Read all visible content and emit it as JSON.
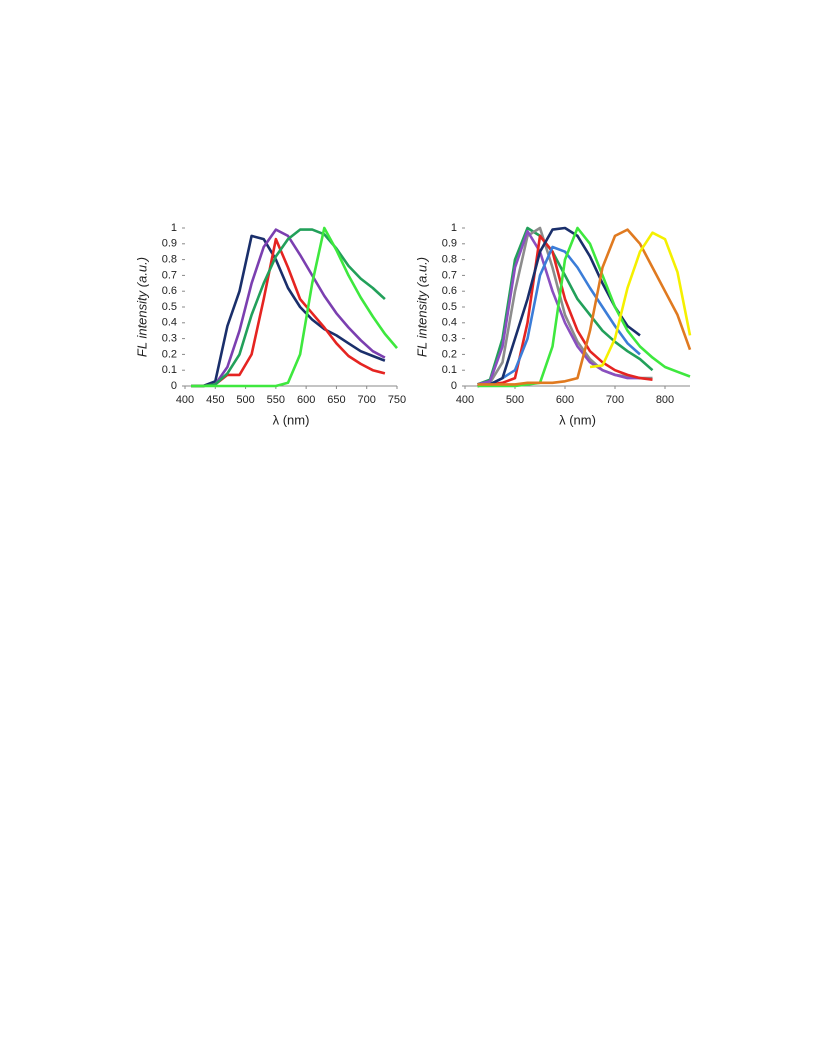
{
  "chart_data": [
    {
      "type": "line",
      "xlabel": "λ (nm)",
      "ylabel": "FL intensity (a.u.)",
      "x": [
        410,
        430,
        450,
        470,
        490,
        510,
        530,
        550,
        570,
        590,
        610,
        630,
        650,
        670,
        690,
        710,
        730,
        750
      ],
      "xlim": [
        400,
        750
      ],
      "xticks": [
        400,
        450,
        500,
        550,
        600,
        650,
        700,
        750
      ],
      "ylim": [
        0,
        1
      ],
      "yticks": [
        0,
        0.1,
        0.2,
        0.3,
        0.4,
        0.5,
        0.6,
        0.7,
        0.8,
        0.9,
        1
      ],
      "series": [
        {
          "color": "#1a2f6b",
          "values": [
            0,
            0,
            0.03,
            0.38,
            0.6,
            0.95,
            0.93,
            0.8,
            0.62,
            0.5,
            0.42,
            0.36,
            0.32,
            0.27,
            0.22,
            0.19,
            0.16,
            null
          ]
        },
        {
          "color": "#7b3fb0",
          "values": [
            0,
            0,
            0.01,
            0.12,
            0.35,
            0.65,
            0.88,
            0.99,
            0.95,
            0.83,
            0.7,
            0.57,
            0.46,
            0.37,
            0.29,
            0.22,
            0.18,
            null
          ]
        },
        {
          "color": "#e52421",
          "values": [
            0,
            0,
            0.01,
            0.07,
            0.07,
            0.2,
            0.55,
            0.93,
            0.75,
            0.55,
            0.46,
            0.37,
            0.27,
            0.19,
            0.14,
            0.1,
            0.08,
            null
          ]
        },
        {
          "color": "#22a05a",
          "values": [
            0,
            0,
            0.01,
            0.08,
            0.2,
            0.45,
            0.65,
            0.82,
            0.93,
            0.99,
            0.99,
            0.96,
            0.87,
            0.76,
            0.68,
            0.62,
            0.55,
            null
          ]
        },
        {
          "color": "#3ee83e",
          "values": [
            0,
            0,
            0,
            0,
            0,
            0,
            0,
            0,
            0.02,
            0.2,
            0.65,
            1,
            0.86,
            0.7,
            0.56,
            0.44,
            0.33,
            0.24
          ]
        }
      ]
    },
    {
      "type": "line",
      "xlabel": "λ (nm)",
      "ylabel": "FL intensity (a.u.)",
      "x": [
        400,
        425,
        450,
        475,
        500,
        525,
        550,
        575,
        600,
        625,
        650,
        675,
        700,
        725,
        750,
        775,
        800,
        825,
        850
      ],
      "xlim": [
        400,
        850
      ],
      "xticks": [
        400,
        500,
        600,
        700,
        800
      ],
      "ylim": [
        0,
        1
      ],
      "yticks": [
        0,
        0.1,
        0.2,
        0.3,
        0.4,
        0.5,
        0.6,
        0.7,
        0.8,
        0.9,
        1
      ],
      "series": [
        {
          "color": "#22a05a",
          "values": [
            null,
            0.01,
            0.04,
            0.3,
            0.8,
            1,
            0.95,
            0.85,
            0.7,
            0.55,
            0.45,
            0.35,
            0.28,
            0.22,
            0.17,
            0.1,
            null,
            null,
            null
          ]
        },
        {
          "color": "#8c8c8c",
          "values": [
            null,
            0.01,
            0.02,
            0.15,
            0.6,
            0.95,
            1,
            0.75,
            0.45,
            0.28,
            0.17,
            0.1,
            0.07,
            0.06,
            0.05,
            0.05,
            null,
            null,
            null
          ]
        },
        {
          "color": "#8a4fc0",
          "values": [
            null,
            0.01,
            0.03,
            0.25,
            0.75,
            0.98,
            0.85,
            0.6,
            0.4,
            0.25,
            0.15,
            0.1,
            0.07,
            0.05,
            0.05,
            null,
            null,
            null,
            null
          ]
        },
        {
          "color": "#e52421",
          "values": [
            null,
            0,
            0.01,
            0.02,
            0.05,
            0.4,
            0.95,
            0.85,
            0.55,
            0.35,
            0.22,
            0.15,
            0.1,
            0.07,
            0.05,
            0.04,
            null,
            null,
            null
          ]
        },
        {
          "color": "#3b7dd8",
          "values": [
            null,
            0,
            0.01,
            0.05,
            0.1,
            0.3,
            0.7,
            0.88,
            0.85,
            0.75,
            0.62,
            0.5,
            0.38,
            0.27,
            0.2,
            null,
            null,
            null,
            null
          ]
        },
        {
          "color": "#1a2f6b",
          "values": [
            null,
            0,
            0.01,
            0.05,
            0.3,
            0.55,
            0.85,
            0.99,
            1,
            0.95,
            0.82,
            0.65,
            0.5,
            0.38,
            0.32,
            null,
            null,
            null,
            null
          ]
        },
        {
          "color": "#3ee83e",
          "values": [
            null,
            0,
            0,
            0,
            0,
            0.01,
            0.02,
            0.25,
            0.8,
            1,
            0.9,
            0.7,
            0.5,
            0.35,
            0.25,
            0.18,
            0.12,
            0.09,
            0.06
          ]
        },
        {
          "color": "#e07a20",
          "values": [
            null,
            0.01,
            0.01,
            0.01,
            0.01,
            0.02,
            0.02,
            0.02,
            0.03,
            0.05,
            0.35,
            0.75,
            0.95,
            0.99,
            0.9,
            0.75,
            0.6,
            0.45,
            0.23
          ]
        },
        {
          "color": "#f5f000",
          "values": [
            null,
            null,
            null,
            null,
            null,
            null,
            null,
            null,
            null,
            null,
            0.12,
            0.13,
            0.3,
            0.62,
            0.85,
            0.97,
            0.93,
            0.72,
            0.32
          ]
        }
      ]
    }
  ]
}
